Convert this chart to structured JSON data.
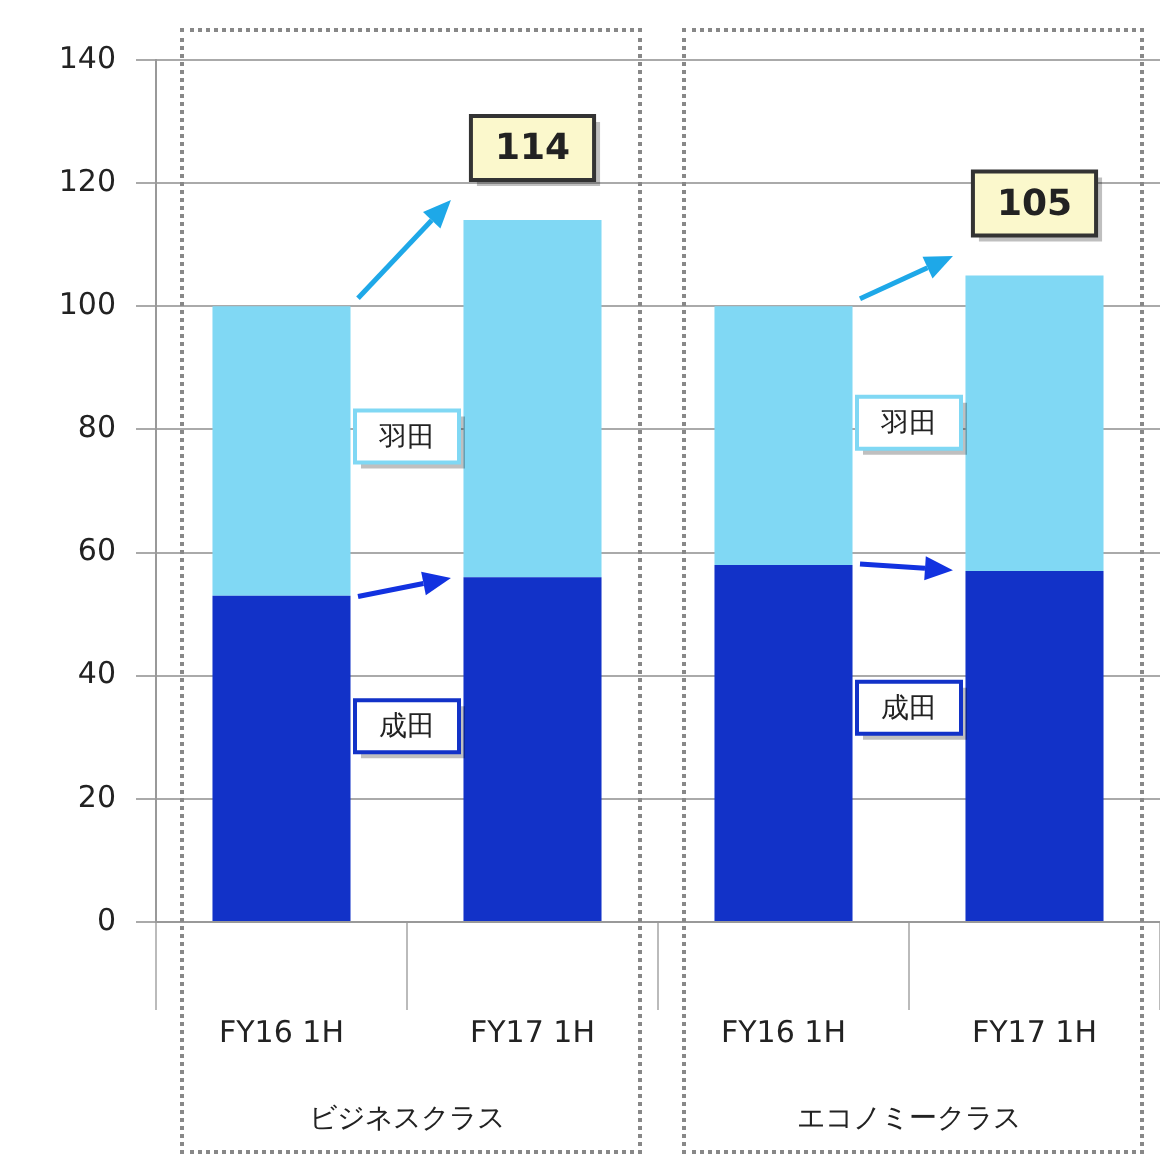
{
  "chart_data": {
    "type": "bar",
    "stacked": true,
    "categories": [
      "FY16 1H",
      "FY17 1H",
      "FY16 1H",
      "FY17 1H"
    ],
    "series": [
      {
        "name": "成田",
        "color": "#1232c8",
        "values": [
          53,
          56,
          58,
          57
        ]
      },
      {
        "name": "羽田",
        "color": "#80d8f4",
        "values": [
          47,
          58,
          42,
          48
        ]
      }
    ],
    "totals": [
      null,
      "114",
      null,
      "105"
    ],
    "annotations": [
      "ビジネスクラス",
      "エコノミークラス"
    ],
    "ylim": [
      0,
      140
    ],
    "yticks": [
      0,
      20,
      40,
      60,
      80,
      100,
      120,
      140
    ],
    "grid": "y",
    "legend": false
  }
}
